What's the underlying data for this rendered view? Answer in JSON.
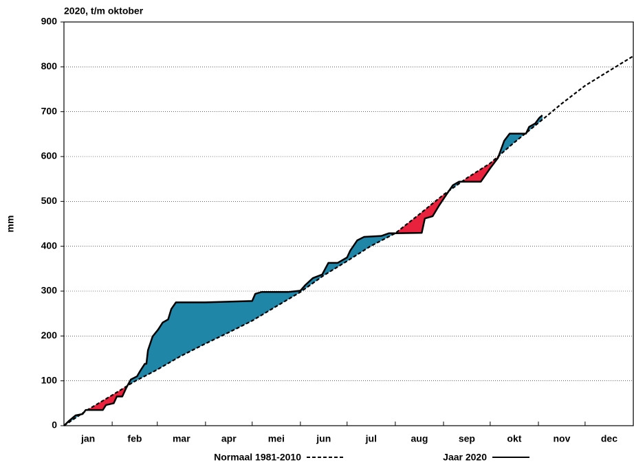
{
  "chart_data": {
    "type": "line",
    "title": "2020, t/m oktober",
    "ylabel": "mm",
    "categories": [
      "jan",
      "feb",
      "mar",
      "apr",
      "mei",
      "jun",
      "jul",
      "aug",
      "sep",
      "okt",
      "nov",
      "dec"
    ],
    "xticks": [
      0,
      31,
      60,
      91,
      121,
      152,
      182,
      213,
      244,
      274,
      305,
      335,
      366
    ],
    "xlim": [
      0,
      366
    ],
    "ylim": [
      0,
      900
    ],
    "yticks": [
      0,
      100,
      200,
      300,
      400,
      500,
      600,
      700,
      800,
      900
    ],
    "grid": true,
    "legend": "bottom",
    "fill_colors": {
      "above": "#1f86a8",
      "below": "#e8213c"
    },
    "series": [
      {
        "name": "Normaal 1981-2010",
        "color": "#000000",
        "dash": true,
        "x": [
          0,
          15,
          31,
          45,
          60,
          75,
          91,
          106,
          121,
          136,
          152,
          167,
          182,
          197,
          213,
          228,
          244,
          259,
          274,
          289,
          305,
          320,
          335,
          350,
          366
        ],
        "values": [
          0,
          35,
          68,
          98,
          125,
          155,
          183,
          208,
          234,
          265,
          298,
          335,
          367,
          400,
          429,
          470,
          515,
          552,
          585,
          630,
          675,
          718,
          758,
          790,
          824
        ]
      },
      {
        "name": "Jaar 2020",
        "color": "#000000",
        "dash": false,
        "x": [
          0,
          3,
          7.5,
          12,
          14,
          25,
          27,
          32,
          34,
          37.5,
          40,
          43,
          47,
          49,
          52,
          53,
          54,
          57,
          60.5,
          63.5,
          67,
          69,
          72,
          91,
          121,
          123,
          127,
          144,
          152,
          155,
          160,
          166,
          170,
          176,
          182,
          184,
          188.5,
          193,
          204,
          209,
          213,
          230,
          232,
          237,
          241,
          246,
          250,
          254,
          268,
          274,
          279,
          283,
          286.5,
          297,
          299,
          303,
          305.5,
          307.5
        ],
        "values": [
          0,
          10,
          23,
          26,
          35,
          35,
          46,
          50,
          65,
          65,
          84,
          103,
          110,
          122,
          138,
          138,
          168,
          199,
          214,
          230,
          237,
          260,
          275,
          275,
          278,
          294,
          298,
          298,
          301,
          313,
          329,
          337,
          363,
          363,
          375,
          390,
          413,
          421,
          423,
          429,
          429,
          430,
          462,
          467,
          490,
          516,
          536,
          544,
          544,
          574,
          597,
          635,
          651,
          651,
          666,
          674,
          686,
          692
        ]
      }
    ]
  }
}
